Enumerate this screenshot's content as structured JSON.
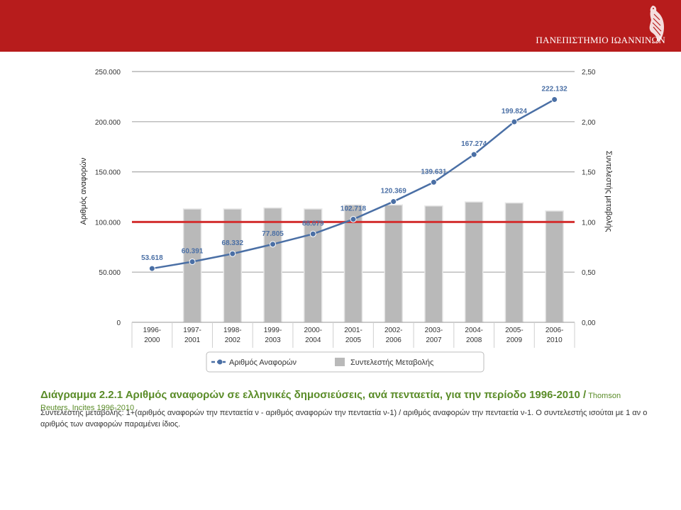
{
  "header": {
    "university": "ΠΑΝΕΠΙΣΤΗΜΙΟ ΙΩΑΝΝΙΝΩΝ",
    "banner_color": "#b71c1c",
    "logo_icon": "eagle-emblem-icon"
  },
  "chart_data": {
    "type": "bar+line",
    "categories": [
      "1996-\n2000",
      "1997-\n2001",
      "1998-\n2002",
      "1999-\n2003",
      "2000-\n2004",
      "2001-\n2005",
      "2002-\n2006",
      "2003-\n2007",
      "2004-\n2008",
      "2005-\n2009",
      "2006-\n2010"
    ],
    "series": [
      {
        "name": "Αριθμός Αναφορών",
        "kind": "line",
        "axis": "left",
        "color": "#4a6fa5",
        "values": [
          53618,
          60391,
          68332,
          77805,
          88079,
          102718,
          120369,
          139631,
          167274,
          199824,
          222132
        ],
        "labels": [
          "53.618",
          "60.391",
          "68.332",
          "77.805",
          "88.079",
          "102.718",
          "120.369",
          "139.631",
          "167.274",
          "199.824",
          "222.132"
        ]
      },
      {
        "name": "Συντελεστής Μεταβολής",
        "kind": "bar",
        "axis": "right",
        "color": "#b9b9b9",
        "values": [
          null,
          1.13,
          1.13,
          1.14,
          1.13,
          1.17,
          1.17,
          1.16,
          1.2,
          1.19,
          1.11
        ]
      }
    ],
    "reference_line": {
      "axis": "right",
      "value": 1.0,
      "color": "#d32f2f"
    },
    "ylabel": "Αριθμός αναφορών",
    "y2label": "Συντελεστής μεταβολής",
    "ylim": [
      0,
      250000
    ],
    "y2lim": [
      0,
      2.5
    ],
    "yticks": [
      "0",
      "50.000",
      "100.000",
      "150.000",
      "200.000",
      "250.000"
    ],
    "y2ticks": [
      "0,00",
      "0,50",
      "1,00",
      "1,50",
      "2,00",
      "2,50"
    ],
    "grid": true,
    "legend_position": "bottom"
  },
  "caption": {
    "main": "Διάγραμμα 2.2.1  Αριθμός αναφορών σε ελληνικές δημοσιεύσεις, ανά πενταετία, για την περίοδο 1996-2010 /",
    "source": " Thomson Reuters, Incites 1996-2010"
  },
  "note": "Συντελεστής μεταβολής: 1+(αριθμός αναφορών την πενταετία ν - αριθμός αναφορών την πενταετία  ν-1) / αριθμός αναφορών την πενταετία ν-1. Ο συντελεστής ισούται με 1 αν ο αριθμός των αναφορών παραμένει ίδιος."
}
